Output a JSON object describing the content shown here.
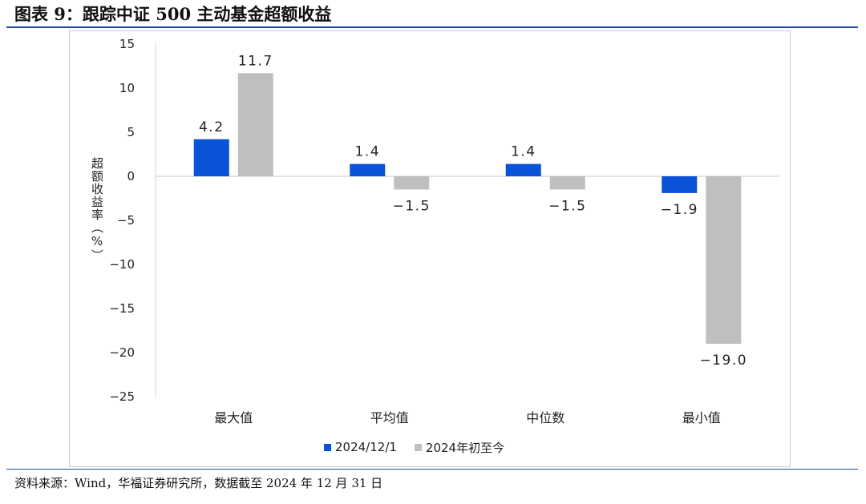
{
  "figure": {
    "title": "图表 9：跟踪中证 500 主动基金超额收益",
    "source": "资料来源：Wind，华福证券研究所，数据截至 2024 年 12 月 31 日"
  },
  "colors": {
    "rule": "#1f4e9c",
    "series1": "#0a52d6",
    "series2": "#bfbfbf",
    "axis": "#d0d0d0"
  },
  "chart_data": {
    "type": "bar",
    "title": "",
    "xlabel": "",
    "ylabel": "超额收益率（%）",
    "ylim": [
      -25,
      15
    ],
    "yticks": [
      15,
      10,
      5,
      0,
      -5,
      -10,
      -15,
      -20,
      -25
    ],
    "ytick_labels": [
      "15",
      "10",
      "5",
      "0",
      "−5",
      "−10",
      "−15",
      "−20",
      "−25"
    ],
    "grid": false,
    "legend_position": "bottom",
    "categories": [
      "最大值",
      "平均值",
      "中位数",
      "最小值"
    ],
    "series": [
      {
        "name": "2024/12/1",
        "values": [
          4.2,
          1.4,
          1.4,
          -1.9
        ],
        "value_labels": [
          "4.2",
          "1.4",
          "1.4",
          "−1.9"
        ]
      },
      {
        "name": "2024年初至今",
        "values": [
          11.7,
          -1.5,
          -1.5,
          -19.0
        ],
        "value_labels": [
          "11.7",
          "−1.5",
          "−1.5",
          "−19.0"
        ]
      }
    ]
  }
}
